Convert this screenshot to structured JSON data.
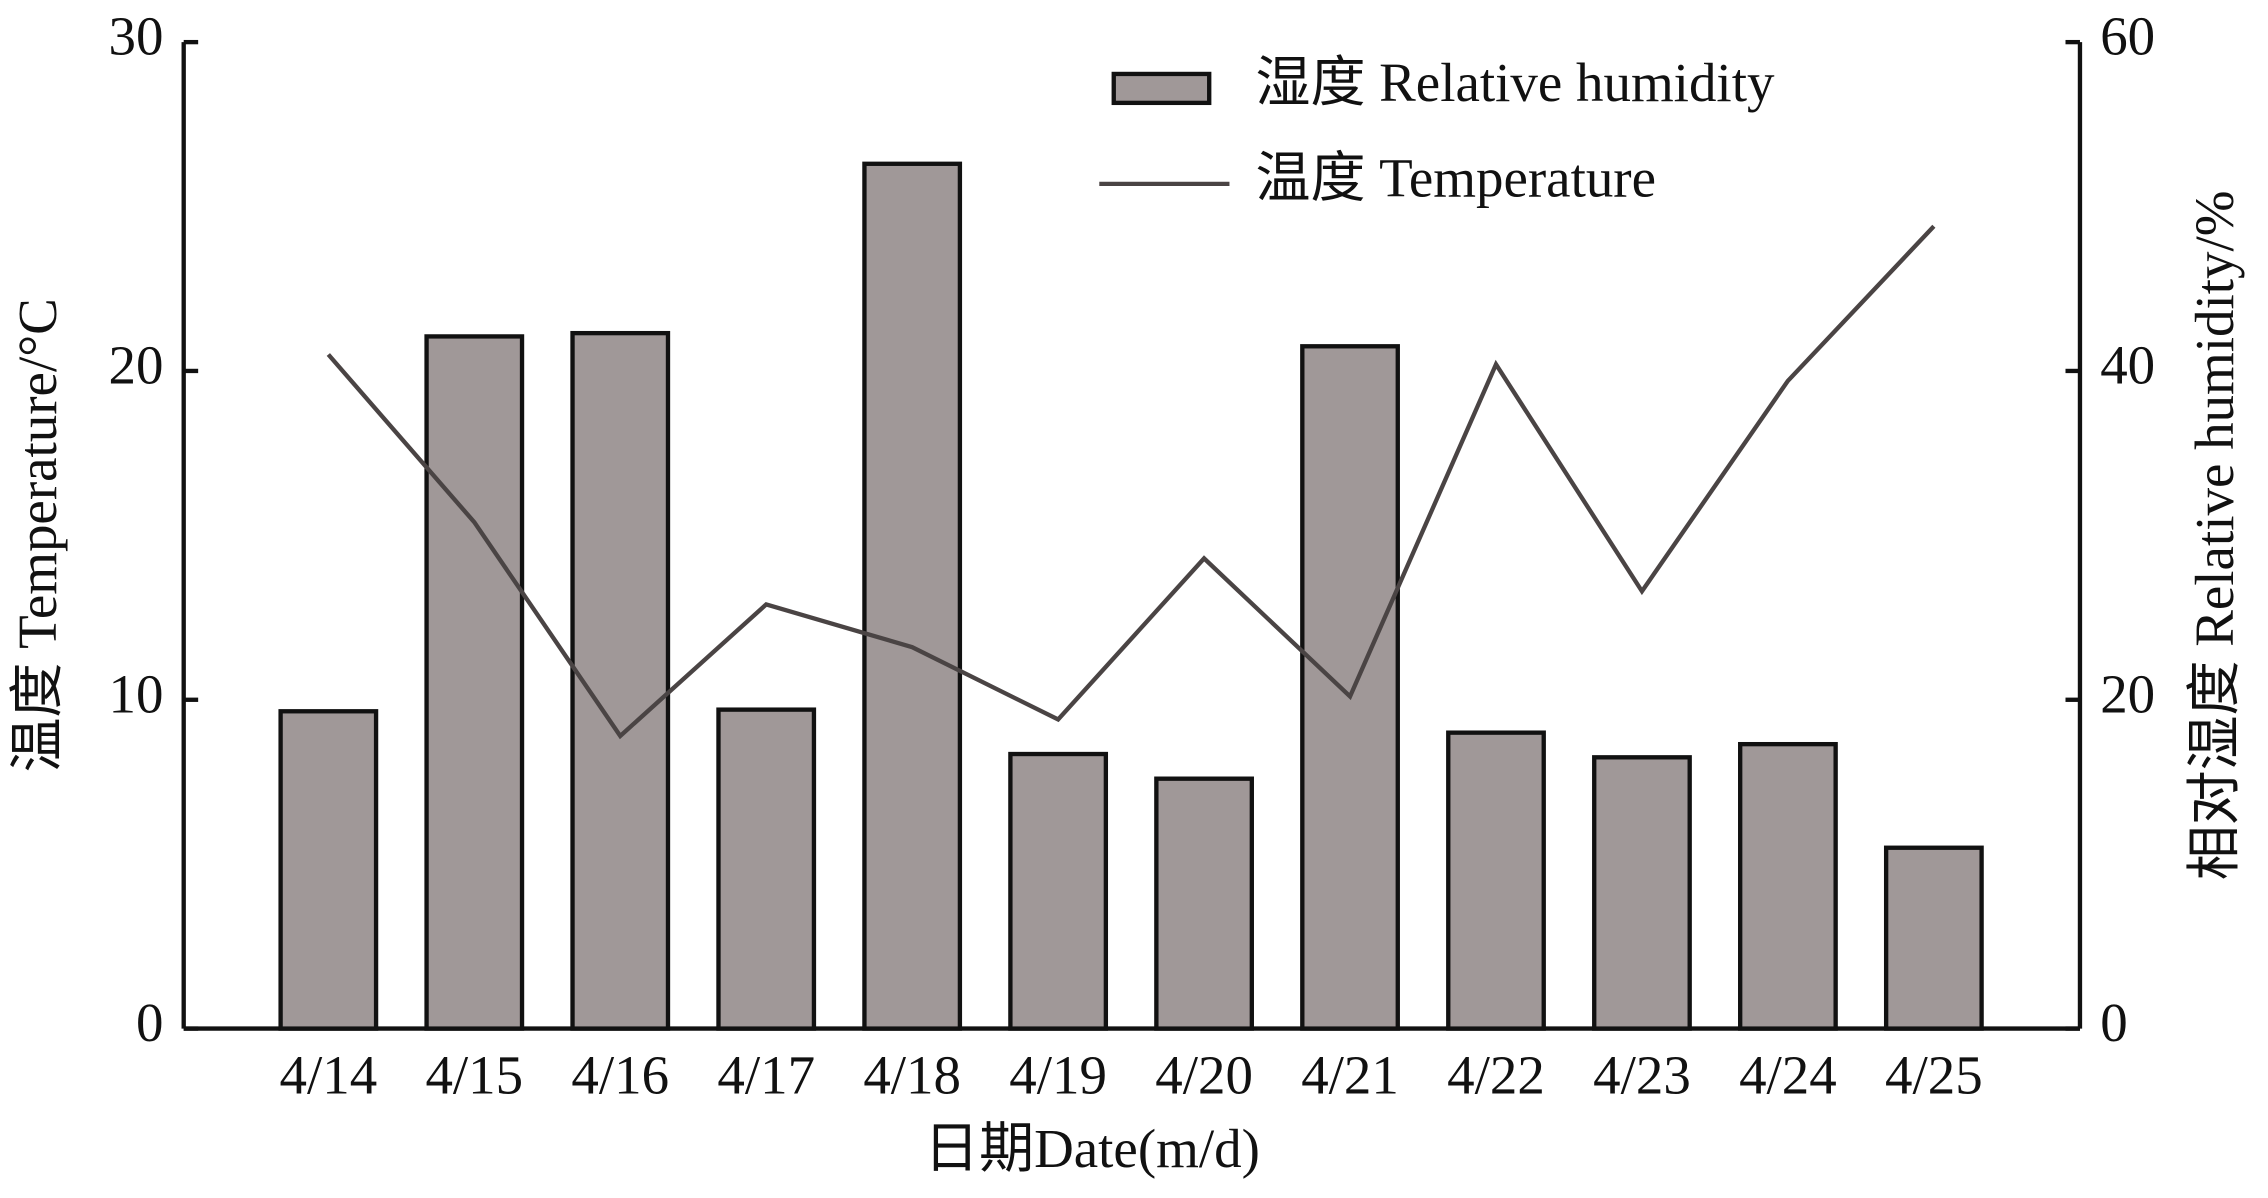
{
  "chart_data": {
    "type": "bar-line",
    "xlabel": "日期Date(m/d)",
    "ylabel": "温度 Temperature/°C",
    "y2label": "相对湿度 Relative humidity/%",
    "categories": [
      "4/14",
      "4/15",
      "4/16",
      "4/17",
      "4/18",
      "4/19",
      "4/20",
      "4/21",
      "4/22",
      "4/23",
      "4/24",
      "4/25"
    ],
    "ylim": [
      0,
      30
    ],
    "yticks": [
      0,
      10,
      20,
      30
    ],
    "y2lim": [
      0,
      60
    ],
    "y2ticks": [
      0,
      20,
      40,
      60
    ],
    "legend": "top-right",
    "series": [
      {
        "name": "湿度 Relative humidity",
        "type": "bar",
        "axis": "y2",
        "color": "#a09898",
        "values": [
          19.3,
          42.1,
          42.3,
          19.4,
          52.6,
          16.7,
          15.2,
          41.5,
          18.0,
          16.5,
          17.3,
          11.0
        ]
      },
      {
        "name": "温度 Temperature",
        "type": "line",
        "axis": "y",
        "color": "#4a4444",
        "values": [
          20.5,
          15.4,
          8.9,
          12.9,
          11.6,
          9.4,
          14.3,
          10.1,
          20.2,
          13.3,
          19.7,
          24.4
        ]
      }
    ]
  }
}
